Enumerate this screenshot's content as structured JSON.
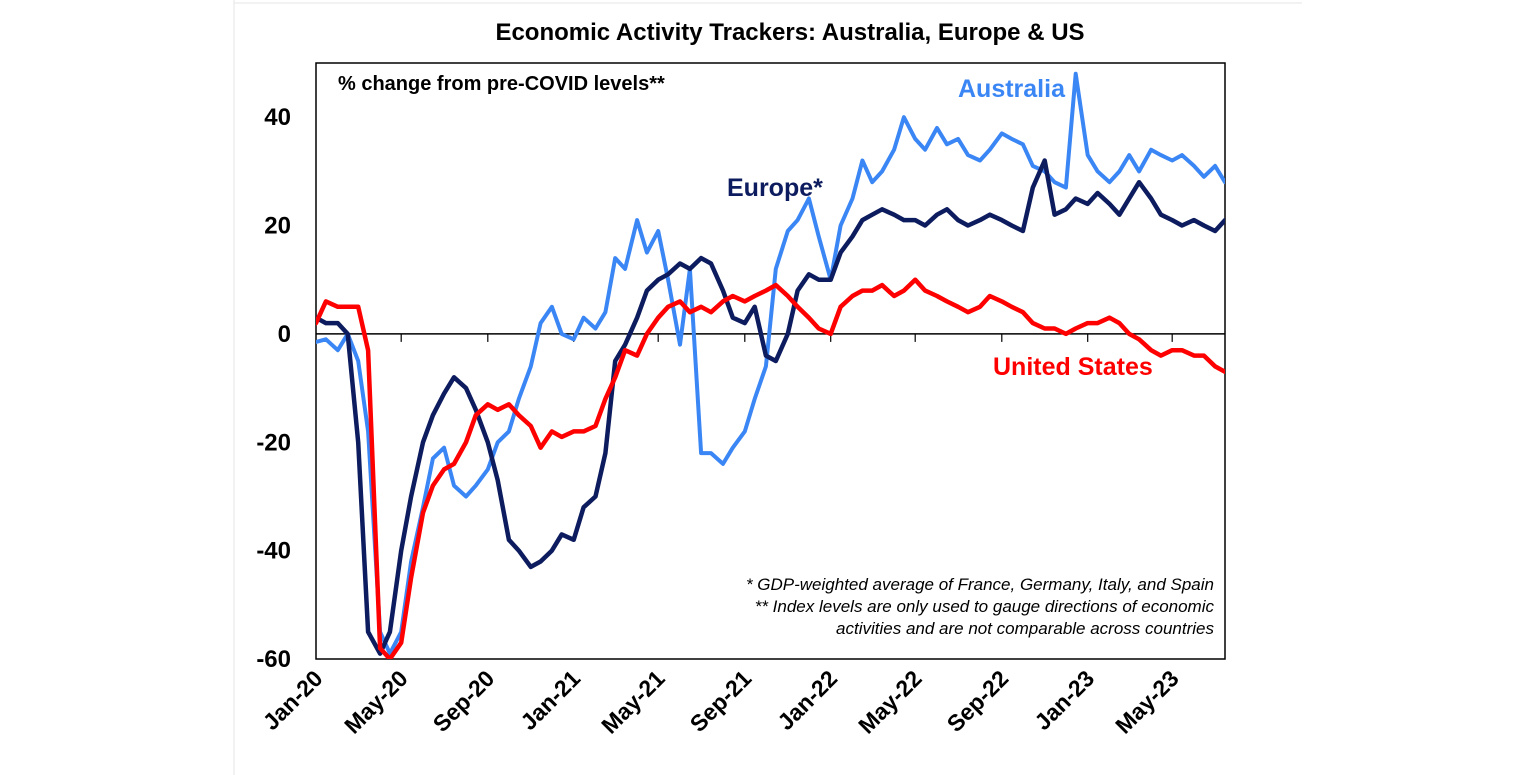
{
  "chart_data": {
    "type": "line",
    "title": "Economic Activity Trackers: Australia, Europe & US",
    "subtitle": "% change from pre-COVID levels**",
    "xlabel": "",
    "ylabel": "",
    "ylim": [
      -60,
      50
    ],
    "yticks": [
      -60,
      -40,
      -20,
      0,
      20,
      40
    ],
    "ytick_labels": [
      "-60",
      "-40",
      "-20",
      "0",
      "20",
      "40"
    ],
    "x_range": [
      "2020-01-01",
      "2023-07-15"
    ],
    "x_tick_labels": [
      "Jan-20",
      "May-20",
      "Sep-20",
      "Jan-21",
      "May-21",
      "Sep-21",
      "Jan-22",
      "May-22",
      "Sep-22",
      "Jan-23",
      "May-23"
    ],
    "x_tick_dates": [
      "2020-01-01",
      "2020-05-01",
      "2020-09-01",
      "2021-01-01",
      "2021-05-01",
      "2021-09-01",
      "2022-01-01",
      "2022-05-01",
      "2022-09-01",
      "2023-01-01",
      "2023-05-01"
    ],
    "grid": false,
    "footnotes": [
      "* GDP-weighted average of France, Germany, Italy, and Spain",
      "** Index levels are only used to gauge directions of economic",
      "activities and are not comparable across countries"
    ],
    "series": [
      {
        "name": "Australia",
        "color": "#3B86F5",
        "x": [
          "2020-01-01",
          "2020-01-15",
          "2020-02-01",
          "2020-02-15",
          "2020-03-01",
          "2020-03-15",
          "2020-04-01",
          "2020-04-15",
          "2020-05-01",
          "2020-05-15",
          "2020-06-01",
          "2020-06-15",
          "2020-07-01",
          "2020-07-15",
          "2020-08-01",
          "2020-08-15",
          "2020-09-01",
          "2020-09-15",
          "2020-10-01",
          "2020-10-15",
          "2020-11-01",
          "2020-11-15",
          "2020-12-01",
          "2020-12-15",
          "2021-01-01",
          "2021-01-15",
          "2021-02-01",
          "2021-02-15",
          "2021-03-01",
          "2021-03-15",
          "2021-04-01",
          "2021-04-15",
          "2021-05-01",
          "2021-05-15",
          "2021-06-01",
          "2021-06-15",
          "2021-07-01",
          "2021-07-15",
          "2021-08-01",
          "2021-08-15",
          "2021-09-01",
          "2021-09-15",
          "2021-10-01",
          "2021-10-15",
          "2021-11-01",
          "2021-11-15",
          "2021-12-01",
          "2021-12-15",
          "2022-01-01",
          "2022-01-15",
          "2022-02-01",
          "2022-02-15",
          "2022-03-01",
          "2022-03-15",
          "2022-04-01",
          "2022-04-15",
          "2022-05-01",
          "2022-05-15",
          "2022-06-01",
          "2022-06-15",
          "2022-07-01",
          "2022-07-15",
          "2022-08-01",
          "2022-08-15",
          "2022-09-01",
          "2022-09-15",
          "2022-10-01",
          "2022-10-15",
          "2022-11-01",
          "2022-11-15",
          "2022-12-01",
          "2022-12-15",
          "2023-01-01",
          "2023-01-15",
          "2023-02-01",
          "2023-02-15",
          "2023-03-01",
          "2023-03-15",
          "2023-04-01",
          "2023-04-15",
          "2023-05-01",
          "2023-05-15",
          "2023-06-01",
          "2023-06-15",
          "2023-07-01",
          "2023-07-15"
        ],
        "values": [
          -1.5,
          -1,
          -3,
          0,
          -5,
          -18,
          -55,
          -59,
          -55,
          -42,
          -32,
          -23,
          -21,
          -28,
          -30,
          -28,
          -25,
          -20,
          -18,
          -12,
          -6,
          2,
          5,
          0,
          -1,
          3,
          1,
          4,
          14,
          12,
          21,
          15,
          19,
          10,
          -2,
          12,
          -22,
          -22,
          -24,
          -21,
          -18,
          -12,
          -6,
          12,
          19,
          21,
          25,
          18,
          10,
          20,
          25,
          32,
          28,
          30,
          34,
          40,
          36,
          34,
          38,
          35,
          36,
          33,
          32,
          34,
          37,
          36,
          35,
          31,
          30,
          28,
          27,
          48,
          33,
          30,
          28,
          30,
          33,
          30,
          34,
          33,
          32,
          33,
          31,
          29,
          31,
          28
        ]
      },
      {
        "name": "Europe*",
        "color": "#0D1C5E",
        "x": [
          "2020-01-01",
          "2020-01-15",
          "2020-02-01",
          "2020-02-15",
          "2020-03-01",
          "2020-03-15",
          "2020-04-01",
          "2020-04-15",
          "2020-05-01",
          "2020-05-15",
          "2020-06-01",
          "2020-06-15",
          "2020-07-01",
          "2020-07-15",
          "2020-08-01",
          "2020-08-15",
          "2020-09-01",
          "2020-09-15",
          "2020-10-01",
          "2020-10-15",
          "2020-11-01",
          "2020-11-15",
          "2020-12-01",
          "2020-12-15",
          "2021-01-01",
          "2021-01-15",
          "2021-02-01",
          "2021-02-15",
          "2021-03-01",
          "2021-03-15",
          "2021-04-01",
          "2021-04-15",
          "2021-05-01",
          "2021-05-15",
          "2021-06-01",
          "2021-06-15",
          "2021-07-01",
          "2021-07-15",
          "2021-08-01",
          "2021-08-15",
          "2021-09-01",
          "2021-09-15",
          "2021-10-01",
          "2021-10-15",
          "2021-11-01",
          "2021-11-15",
          "2021-12-01",
          "2021-12-15",
          "2022-01-01",
          "2022-01-15",
          "2022-02-01",
          "2022-02-15",
          "2022-03-01",
          "2022-03-15",
          "2022-04-01",
          "2022-04-15",
          "2022-05-01",
          "2022-05-15",
          "2022-06-01",
          "2022-06-15",
          "2022-07-01",
          "2022-07-15",
          "2022-08-01",
          "2022-08-15",
          "2022-09-01",
          "2022-09-15",
          "2022-10-01",
          "2022-10-15",
          "2022-11-01",
          "2022-11-15",
          "2022-12-01",
          "2022-12-15",
          "2023-01-01",
          "2023-01-15",
          "2023-02-01",
          "2023-02-15",
          "2023-03-01",
          "2023-03-15",
          "2023-04-01",
          "2023-04-15",
          "2023-05-01",
          "2023-05-15",
          "2023-06-01",
          "2023-06-15",
          "2023-07-01",
          "2023-07-15"
        ],
        "values": [
          3,
          2,
          2,
          0,
          -20,
          -55,
          -59,
          -55,
          -40,
          -30,
          -20,
          -15,
          -11,
          -8,
          -10,
          -14,
          -20,
          -27,
          -38,
          -40,
          -43,
          -42,
          -40,
          -37,
          -38,
          -32,
          -30,
          -22,
          -5,
          -2,
          3,
          8,
          10,
          11,
          13,
          12,
          14,
          13,
          8,
          3,
          2,
          5,
          -4,
          -5,
          0,
          8,
          11,
          10,
          10,
          15,
          18,
          21,
          22,
          23,
          22,
          21,
          21,
          20,
          22,
          23,
          21,
          20,
          21,
          22,
          21,
          20,
          19,
          27,
          32,
          22,
          23,
          25,
          24,
          26,
          24,
          22,
          25,
          28,
          25,
          22,
          21,
          20,
          21,
          20,
          19,
          21
        ]
      },
      {
        "name": "United States",
        "color": "#FF0000",
        "x": [
          "2020-01-01",
          "2020-01-15",
          "2020-02-01",
          "2020-02-15",
          "2020-03-01",
          "2020-03-15",
          "2020-04-01",
          "2020-04-15",
          "2020-05-01",
          "2020-05-15",
          "2020-06-01",
          "2020-06-15",
          "2020-07-01",
          "2020-07-15",
          "2020-08-01",
          "2020-08-15",
          "2020-09-01",
          "2020-09-15",
          "2020-10-01",
          "2020-10-15",
          "2020-11-01",
          "2020-11-15",
          "2020-12-01",
          "2020-12-15",
          "2021-01-01",
          "2021-01-15",
          "2021-02-01",
          "2021-02-15",
          "2021-03-01",
          "2021-03-15",
          "2021-04-01",
          "2021-04-15",
          "2021-05-01",
          "2021-05-15",
          "2021-06-01",
          "2021-06-15",
          "2021-07-01",
          "2021-07-15",
          "2021-08-01",
          "2021-08-15",
          "2021-09-01",
          "2021-09-15",
          "2021-10-01",
          "2021-10-15",
          "2021-11-01",
          "2021-11-15",
          "2021-12-01",
          "2021-12-15",
          "2022-01-01",
          "2022-01-15",
          "2022-02-01",
          "2022-02-15",
          "2022-03-01",
          "2022-03-15",
          "2022-04-01",
          "2022-04-15",
          "2022-05-01",
          "2022-05-15",
          "2022-06-01",
          "2022-06-15",
          "2022-07-01",
          "2022-07-15",
          "2022-08-01",
          "2022-08-15",
          "2022-09-01",
          "2022-09-15",
          "2022-10-01",
          "2022-10-15",
          "2022-11-01",
          "2022-11-15",
          "2022-12-01",
          "2022-12-15",
          "2023-01-01",
          "2023-01-15",
          "2023-02-01",
          "2023-02-15",
          "2023-03-01",
          "2023-03-15",
          "2023-04-01",
          "2023-04-15",
          "2023-05-01",
          "2023-05-15",
          "2023-06-01",
          "2023-06-15",
          "2023-07-01",
          "2023-07-15"
        ],
        "values": [
          2,
          6,
          5,
          5,
          5,
          -3,
          -58,
          -60,
          -57,
          -45,
          -33,
          -28,
          -25,
          -24,
          -20,
          -15,
          -13,
          -14,
          -13,
          -15,
          -17,
          -21,
          -18,
          -19,
          -18,
          -18,
          -17,
          -12,
          -8,
          -3,
          -4,
          0,
          3,
          5,
          6,
          4,
          5,
          4,
          6,
          7,
          6,
          7,
          8,
          9,
          7,
          5,
          3,
          1,
          0,
          5,
          7,
          8,
          8,
          9,
          7,
          8,
          10,
          8,
          7,
          6,
          5,
          4,
          5,
          7,
          6,
          5,
          4,
          2,
          1,
          1,
          0,
          1,
          2,
          2,
          3,
          2,
          0,
          -1,
          -3,
          -4,
          -3,
          -3,
          -4,
          -4,
          -6,
          -7
        ]
      }
    ]
  },
  "labels": {
    "australia": "Australia",
    "europe": "Europe*",
    "us": "United States"
  }
}
